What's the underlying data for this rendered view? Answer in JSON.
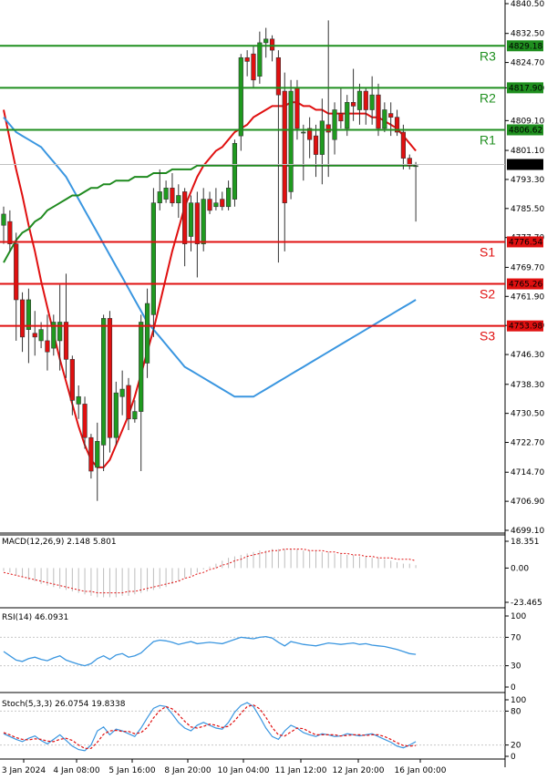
{
  "chart_data": [
    {
      "type": "candlestick",
      "panel": "price",
      "y_ticks": [
        "4840.50",
        "4832.50",
        "4824.70",
        "4817.90",
        "4809.10",
        "4801.10",
        "4793.30",
        "4785.50",
        "4777.70",
        "4769.70",
        "4761.90",
        "4754.10",
        "4746.30",
        "4738.30",
        "4730.50",
        "4722.70",
        "4714.70",
        "4706.90",
        "4699.10"
      ],
      "ylim": [
        4699.1,
        4840.5
      ],
      "current_price": "4797.32",
      "levels": [
        {
          "name": "R3",
          "value": "4829.18",
          "color": "#1f8f1f"
        },
        {
          "name": "R2",
          "value": "4817.90",
          "color": "#1f8f1f"
        },
        {
          "name": "R1",
          "value": "4806.62",
          "color": "#1f8f1f"
        },
        {
          "name": "S1",
          "value": "4776.54",
          "color": "#e01010"
        },
        {
          "name": "S2",
          "value": "4765.26",
          "color": "#e01010"
        },
        {
          "name": "S3",
          "value": "4753.98",
          "color": "#e01010"
        }
      ],
      "candles": [
        [
          4781,
          4784,
          4776,
          4786
        ],
        [
          4782,
          4776,
          4774,
          4785
        ],
        [
          4776,
          4761,
          4750,
          4779
        ],
        [
          4761,
          4751,
          4747,
          4763
        ],
        [
          4753,
          4761,
          4744,
          4764
        ],
        [
          4752,
          4751,
          4746,
          4758
        ],
        [
          4750,
          4753,
          4748,
          4755
        ],
        [
          4750,
          4747,
          4742,
          4757
        ],
        [
          4748,
          4755,
          4746,
          4757
        ],
        [
          4750,
          4755,
          4742,
          4765
        ],
        [
          4755,
          4745,
          4740,
          4768
        ],
        [
          4745,
          4734,
          4730,
          4746
        ],
        [
          4733,
          4735,
          4729,
          4738
        ],
        [
          4733,
          4724,
          4721,
          4735
        ],
        [
          4724,
          4715,
          4713,
          4725
        ],
        [
          4716,
          4723,
          4707,
          4728
        ],
        [
          4722,
          4756,
          4715,
          4757
        ],
        [
          4756,
          4724,
          4720,
          4758
        ],
        [
          4724,
          4736,
          4722,
          4739
        ],
        [
          4735,
          4737,
          4730,
          4742
        ],
        [
          4738,
          4729,
          4726,
          4740
        ],
        [
          4729,
          4731,
          4728,
          4734
        ],
        [
          4731,
          4755,
          4715,
          4757
        ],
        [
          4744,
          4760,
          4740,
          4764
        ],
        [
          4757,
          4787,
          4751,
          4791
        ],
        [
          4787,
          4790,
          4785,
          4796
        ],
        [
          4788,
          4791,
          4787,
          4793
        ],
        [
          4791,
          4787,
          4786,
          4795
        ],
        [
          4787,
          4789,
          4783,
          4792
        ],
        [
          4790,
          4776,
          4770,
          4791
        ],
        [
          4778,
          4787,
          4774,
          4789
        ],
        [
          4787,
          4776,
          4767,
          4790
        ],
        [
          4776,
          4788,
          4774,
          4791
        ],
        [
          4788,
          4785,
          4784,
          4790
        ],
        [
          4786,
          4787,
          4785,
          4791
        ],
        [
          4788,
          4786,
          4785,
          4790
        ],
        [
          4786,
          4791,
          4785,
          4793
        ],
        [
          4788,
          4803,
          4786,
          4804
        ],
        [
          4805,
          4826,
          4801,
          4827
        ],
        [
          4826,
          4825,
          4821,
          4828
        ],
        [
          4827,
          4820,
          4818,
          4829
        ],
        [
          4821,
          4830,
          4819,
          4833
        ],
        [
          4830,
          4831,
          4826,
          4834
        ],
        [
          4831,
          4828,
          4825,
          4832
        ],
        [
          4826,
          4816,
          4771,
          4828
        ],
        [
          4817,
          4787,
          4774,
          4822
        ],
        [
          4790,
          4817,
          4788,
          4820
        ],
        [
          4818,
          4807,
          4804,
          4820
        ],
        [
          4806,
          4806,
          4793,
          4808
        ],
        [
          4807,
          4804,
          4799,
          4810
        ],
        [
          4805,
          4800,
          4794,
          4808
        ],
        [
          4800,
          4809,
          4792,
          4815
        ],
        [
          4808,
          4806,
          4794,
          4836
        ],
        [
          4804,
          4812,
          4800,
          4814
        ],
        [
          4811,
          4809,
          4807,
          4818
        ],
        [
          4807,
          4814,
          4805,
          4816
        ],
        [
          4814,
          4813,
          4809,
          4823
        ],
        [
          4812,
          4817,
          4808,
          4819
        ],
        [
          4817,
          4812,
          4808,
          4818
        ],
        [
          4812,
          4816,
          4808,
          4821
        ],
        [
          4816,
          4807,
          4805,
          4819
        ],
        [
          4807,
          4812,
          4806,
          4814
        ],
        [
          4811,
          4810,
          4805,
          4814
        ],
        [
          4810,
          4806,
          4805,
          4812
        ],
        [
          4806,
          4799,
          4796,
          4808
        ],
        [
          4799,
          4797,
          4796,
          4800
        ],
        [
          4797,
          4797,
          4782,
          4798
        ]
      ],
      "series": [
        {
          "color": "#e01010",
          "values": [
            4812,
            4804,
            4796,
            4789,
            4781,
            4774,
            4766,
            4759,
            4752,
            4745,
            4739,
            4733,
            4727,
            4722,
            4718,
            4716,
            4716,
            4718,
            4722,
            4726,
            4730,
            4735,
            4741,
            4747,
            4753,
            4760,
            4767,
            4774,
            4780,
            4786,
            4790,
            4794,
            4797,
            4799,
            4801,
            4802,
            4804,
            4806,
            4807,
            4808,
            4810,
            4811,
            4812,
            4813,
            4813,
            4813,
            4814,
            4814,
            4813,
            4813,
            4812,
            4812,
            4811,
            4811,
            4811,
            4811,
            4811,
            4811,
            4811,
            4810,
            4810,
            4809,
            4808,
            4807,
            4805,
            4803,
            4801
          ]
        },
        {
          "color": "#3a96e0",
          "values": [
            4810,
            4808,
            4806,
            4805,
            4804,
            4803,
            4802,
            4800,
            4798,
            4796,
            4794,
            4791,
            4788,
            4785,
            4782,
            4779,
            4776,
            4773,
            4770,
            4767,
            4764,
            4761,
            4758,
            4755,
            4753,
            4751,
            4749,
            4747,
            4745,
            4743,
            4742,
            4741,
            4740,
            4739,
            4738,
            4737,
            4736,
            4735,
            4735,
            4735,
            4735,
            4736,
            4737,
            4738,
            4739,
            4740,
            4741,
            4742,
            4743,
            4744,
            4745,
            4746,
            4747,
            4748,
            4749,
            4750,
            4751,
            4752,
            4753,
            4754,
            4755,
            4756,
            4757,
            4758,
            4759,
            4760,
            4761
          ]
        },
        {
          "color": "#1f8a1f",
          "values": [
            4771,
            4774,
            4777,
            4779,
            4780,
            4782,
            4783,
            4785,
            4786,
            4787,
            4788,
            4789,
            4789,
            4790,
            4791,
            4791,
            4792,
            4792,
            4793,
            4793,
            4793,
            4794,
            4794,
            4794,
            4795,
            4795,
            4795,
            4796,
            4796,
            4796,
            4796,
            4797,
            4797,
            4797,
            4797,
            4797,
            4797,
            4797,
            4797,
            4797,
            4797,
            4797,
            4797,
            4797,
            4797,
            4797,
            4797,
            4797,
            4797,
            4797,
            4797,
            4797,
            4797,
            4797,
            4797,
            4797,
            4797,
            4797,
            4797,
            4797,
            4797,
            4797,
            4797,
            4797,
            4797,
            4797,
            4797
          ]
        }
      ]
    },
    {
      "type": "bar",
      "panel": "macd",
      "label": "MACD(12,26,9) 2.148 5.801",
      "y_ticks": [
        "18.351",
        "0.00",
        "-23.465"
      ],
      "ylim": [
        -23.465,
        18.351
      ],
      "histogram": [
        -2,
        -3,
        -5,
        -6,
        -8,
        -9,
        -11,
        -12,
        -13,
        -14,
        -15,
        -16,
        -17,
        -18,
        -19,
        -20,
        -20,
        -20,
        -20,
        -19,
        -19,
        -18,
        -17,
        -16,
        -15,
        -14,
        -13,
        -11,
        -9,
        -7,
        -5,
        -3,
        -1,
        1,
        3,
        5,
        7,
        8,
        9,
        10,
        11,
        12,
        12,
        13,
        13,
        13,
        13,
        13,
        12,
        12,
        12,
        11,
        11,
        10,
        10,
        9,
        9,
        8,
        8,
        7,
        7,
        6,
        5,
        4,
        3,
        3,
        2
      ],
      "signal": [
        -3,
        -4,
        -5,
        -6,
        -7,
        -8,
        -9,
        -10,
        -11,
        -12,
        -13,
        -14,
        -15,
        -16,
        -16,
        -17,
        -17,
        -17,
        -17,
        -17,
        -16,
        -16,
        -15,
        -14,
        -13,
        -12,
        -11,
        -10,
        -9,
        -7,
        -6,
        -4,
        -3,
        -1,
        0,
        2,
        3,
        5,
        6,
        8,
        9,
        10,
        11,
        12,
        12,
        13,
        13,
        13,
        13,
        12,
        12,
        12,
        11,
        11,
        10,
        10,
        9,
        9,
        8,
        8,
        7,
        7,
        7,
        6,
        6,
        6,
        5
      ]
    },
    {
      "type": "line",
      "panel": "rsi",
      "label": "RSI(14) 46.0931",
      "y_ticks": [
        "100",
        "70",
        "30",
        "0"
      ],
      "ylim": [
        0,
        100
      ],
      "values": [
        50,
        44,
        38,
        36,
        40,
        42,
        39,
        37,
        41,
        44,
        38,
        35,
        32,
        30,
        33,
        40,
        44,
        39,
        45,
        47,
        42,
        44,
        48,
        56,
        64,
        66,
        65,
        63,
        60,
        62,
        64,
        61,
        62,
        63,
        62,
        61,
        64,
        67,
        70,
        69,
        68,
        70,
        71,
        69,
        63,
        58,
        64,
        62,
        60,
        59,
        58,
        60,
        62,
        61,
        60,
        61,
        62,
        60,
        61,
        59,
        58,
        57,
        55,
        53,
        50,
        47,
        46
      ]
    },
    {
      "type": "line",
      "panel": "stoch",
      "label": "Stoch(5,3,3) 26.0754 19.8338",
      "y_ticks": [
        "100",
        "80",
        "20",
        "0"
      ],
      "ylim": [
        0,
        100
      ],
      "series": [
        {
          "color": "#3a96e0",
          "values": [
            40,
            35,
            30,
            26,
            32,
            36,
            28,
            22,
            30,
            38,
            28,
            18,
            12,
            10,
            20,
            45,
            52,
            38,
            48,
            45,
            40,
            35,
            50,
            68,
            85,
            90,
            88,
            75,
            60,
            50,
            45,
            55,
            60,
            55,
            50,
            48,
            60,
            78,
            90,
            95,
            88,
            70,
            50,
            35,
            30,
            45,
            55,
            50,
            42,
            38,
            35,
            40,
            38,
            35,
            36,
            40,
            38,
            36,
            38,
            40,
            35,
            30,
            25,
            18,
            15,
            20,
            26
          ]
        },
        {
          "color": "#e01010",
          "values": [
            42,
            38,
            33,
            30,
            29,
            31,
            30,
            27,
            26,
            30,
            32,
            28,
            20,
            14,
            14,
            25,
            39,
            45,
            46,
            44,
            44,
            40,
            42,
            51,
            68,
            81,
            88,
            84,
            74,
            62,
            52,
            50,
            53,
            57,
            55,
            51,
            53,
            63,
            76,
            88,
            91,
            84,
            69,
            51,
            38,
            36,
            43,
            50,
            49,
            43,
            38,
            38,
            38,
            38,
            36,
            37,
            38,
            38,
            37,
            38,
            38,
            35,
            30,
            24,
            19,
            18,
            19
          ]
        }
      ]
    },
    {
      "type": "axis",
      "panel": "time",
      "x_ticks": [
        "3 Jan 2024",
        "4 Jan 08:00",
        "5 Jan 16:00",
        "8 Jan 20:00",
        "10 Jan 04:00",
        "11 Jan 12:00",
        "12 Jan 20:00",
        "16 Jan 00:00"
      ]
    }
  ]
}
